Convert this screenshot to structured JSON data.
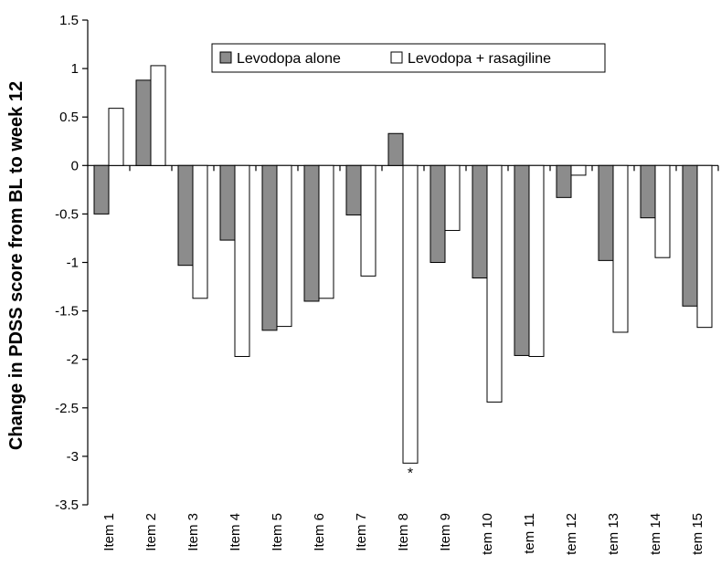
{
  "chart_data": {
    "type": "bar",
    "title": "",
    "xlabel": "",
    "ylabel": "Change in PDSS score from BL to week 12",
    "ylim": [
      -3.5,
      1.5
    ],
    "yticks": [
      1.5,
      1,
      0.5,
      0,
      -0.5,
      -1,
      -1.5,
      -2,
      -2.5,
      -3,
      -3.5
    ],
    "ytick_labels": [
      "1.5",
      "1",
      "0.5",
      "0",
      "-0.5",
      "-1",
      "-1.5",
      "-2",
      "-2.5",
      "-3",
      "-3.5"
    ],
    "grid": false,
    "legend_position": "top",
    "categories": [
      "Item 1",
      "Item 2",
      "Item 3",
      "Item 4",
      "Item 5",
      "Item 6",
      "Item 7",
      "Item 8",
      "Item 9",
      "tem 10",
      "tem 11",
      "tem 12",
      "tem 13",
      "tem 14",
      "tem 15"
    ],
    "series": [
      {
        "name": "Levodopa alone",
        "color": "#8c8c8c",
        "values": [
          -0.5,
          0.88,
          -1.03,
          -0.77,
          -1.7,
          -1.4,
          -0.51,
          0.33,
          -1.0,
          -1.16,
          -1.96,
          -0.33,
          -0.98,
          -0.54,
          -1.45
        ]
      },
      {
        "name": "Levodopa + rasagiline",
        "color": "#ffffff",
        "values": [
          0.59,
          1.03,
          -1.37,
          -1.97,
          -1.66,
          -1.37,
          -1.14,
          -3.07,
          -0.67,
          -2.44,
          -1.97,
          -0.1,
          -1.72,
          -0.95,
          -1.67
        ]
      }
    ],
    "annotations": [
      {
        "text": "*",
        "category": "Item 8",
        "series": "Levodopa + rasagiline"
      }
    ]
  }
}
